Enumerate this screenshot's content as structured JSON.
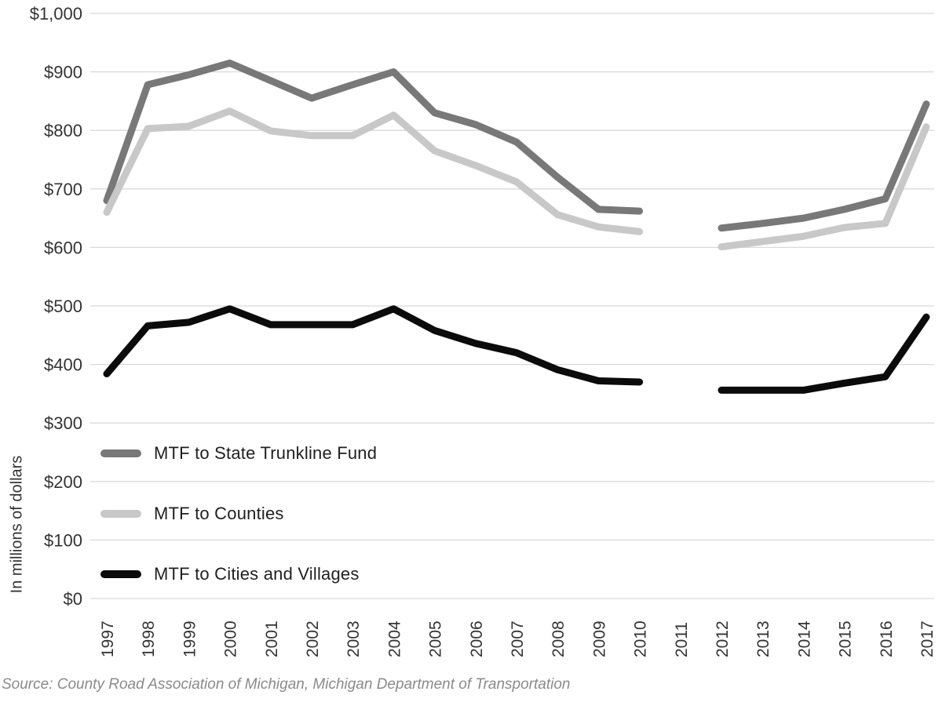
{
  "chart_data": {
    "type": "line",
    "title": "",
    "ylabel": "In millions of dollars",
    "xlabel": "",
    "x": [
      1997,
      1998,
      1999,
      2000,
      2001,
      2002,
      2003,
      2004,
      2005,
      2006,
      2007,
      2008,
      2009,
      2010,
      2011,
      2012,
      2013,
      2014,
      2015,
      2016,
      2017
    ],
    "x_tick_labels": [
      "1997",
      "1998",
      "1999",
      "2000",
      "2001",
      "2002",
      "2003",
      "2004",
      "2005",
      "2006",
      "2007",
      "2008",
      "2009",
      "2010",
      "2011",
      "2012",
      "2013",
      "2014",
      "2015",
      "2016",
      "2017"
    ],
    "y_tick_labels": [
      "$1,000",
      "$900",
      "$800",
      "$700",
      "$600",
      "$500",
      "$400",
      "$300",
      "$200",
      "$100",
      "$0"
    ],
    "y_tick_values": [
      1000,
      900,
      800,
      700,
      600,
      500,
      400,
      300,
      200,
      100,
      0
    ],
    "ylim": [
      0,
      1000
    ],
    "grid": "horizontal-only",
    "missing_years": [
      2011
    ],
    "legend_position": "inside-lower-left",
    "series": [
      {
        "name": "MTF to State Trunkline Fund",
        "color": "#787878",
        "values": [
          680,
          878,
          895,
          915,
          885,
          855,
          878,
          900,
          830,
          810,
          780,
          720,
          665,
          662,
          null,
          633,
          641,
          650,
          665,
          683,
          845
        ]
      },
      {
        "name": "MTF to Counties",
        "color": "#c8c8c8",
        "values": [
          660,
          803,
          807,
          833,
          799,
          791,
          791,
          826,
          765,
          740,
          712,
          656,
          635,
          627,
          null,
          601,
          610,
          619,
          634,
          641,
          806
        ]
      },
      {
        "name": "MTF to Cities and Villages",
        "color": "#0b0b0b",
        "values": [
          384,
          466,
          472,
          495,
          468,
          468,
          468,
          495,
          458,
          436,
          420,
          391,
          372,
          370,
          null,
          356,
          356,
          356,
          368,
          379,
          481
        ]
      }
    ],
    "source": "Source: County Road Association of Michigan, Michigan Department of Transportation"
  },
  "colors": {
    "grid": "#d9d9d9",
    "tick_text": "#333333",
    "legend_text": "#1f1f1f",
    "source_text": "#8a8a8a"
  }
}
